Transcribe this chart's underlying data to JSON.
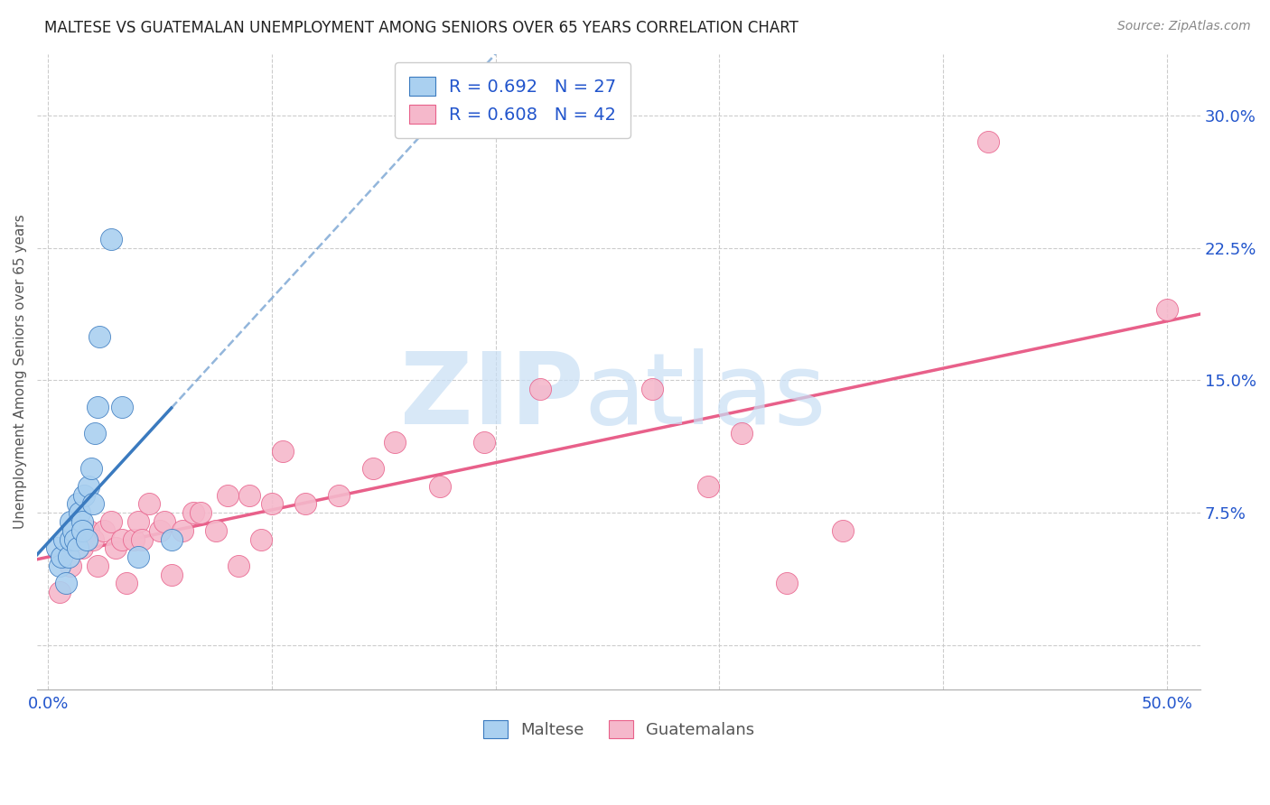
{
  "title": "MALTESE VS GUATEMALAN UNEMPLOYMENT AMONG SENIORS OVER 65 YEARS CORRELATION CHART",
  "source": "Source: ZipAtlas.com",
  "ylabel": "Unemployment Among Seniors over 65 years",
  "xlim": [
    -0.005,
    0.515
  ],
  "ylim": [
    -0.025,
    0.335
  ],
  "xticks": [
    0.0,
    0.1,
    0.2,
    0.3,
    0.4,
    0.5
  ],
  "xticklabels": [
    "0.0%",
    "",
    "",
    "",
    "",
    "50.0%"
  ],
  "yticks_right": [
    0.0,
    0.075,
    0.15,
    0.225,
    0.3
  ],
  "ytick_labels_right": [
    "",
    "7.5%",
    "15.0%",
    "22.5%",
    "30.0%"
  ],
  "maltese_color": "#aad0f0",
  "guatemalan_color": "#f5b8cb",
  "maltese_line_color": "#3a7abf",
  "guatemalan_line_color": "#e8608a",
  "maltese_R": 0.692,
  "maltese_N": 27,
  "guatemalan_R": 0.608,
  "guatemalan_N": 42,
  "legend_label_color": "#2255cc",
  "maltese_x": [
    0.004,
    0.005,
    0.006,
    0.007,
    0.008,
    0.009,
    0.01,
    0.01,
    0.011,
    0.012,
    0.013,
    0.013,
    0.014,
    0.015,
    0.015,
    0.016,
    0.017,
    0.018,
    0.019,
    0.02,
    0.021,
    0.022,
    0.023,
    0.028,
    0.033,
    0.04,
    0.055
  ],
  "maltese_y": [
    0.055,
    0.045,
    0.05,
    0.06,
    0.035,
    0.05,
    0.06,
    0.07,
    0.065,
    0.06,
    0.055,
    0.08,
    0.075,
    0.07,
    0.065,
    0.085,
    0.06,
    0.09,
    0.1,
    0.08,
    0.12,
    0.135,
    0.175,
    0.23,
    0.135,
    0.05,
    0.06
  ],
  "guatemalan_x": [
    0.005,
    0.01,
    0.015,
    0.018,
    0.02,
    0.022,
    0.025,
    0.028,
    0.03,
    0.033,
    0.035,
    0.038,
    0.04,
    0.042,
    0.045,
    0.05,
    0.052,
    0.055,
    0.06,
    0.065,
    0.068,
    0.075,
    0.08,
    0.085,
    0.09,
    0.095,
    0.1,
    0.105,
    0.115,
    0.13,
    0.145,
    0.155,
    0.175,
    0.195,
    0.22,
    0.27,
    0.295,
    0.31,
    0.33,
    0.355,
    0.42,
    0.5
  ],
  "guatemalan_y": [
    0.03,
    0.045,
    0.055,
    0.065,
    0.06,
    0.045,
    0.065,
    0.07,
    0.055,
    0.06,
    0.035,
    0.06,
    0.07,
    0.06,
    0.08,
    0.065,
    0.07,
    0.04,
    0.065,
    0.075,
    0.075,
    0.065,
    0.085,
    0.045,
    0.085,
    0.06,
    0.08,
    0.11,
    0.08,
    0.085,
    0.1,
    0.115,
    0.09,
    0.115,
    0.145,
    0.145,
    0.09,
    0.12,
    0.035,
    0.065,
    0.285,
    0.19
  ]
}
